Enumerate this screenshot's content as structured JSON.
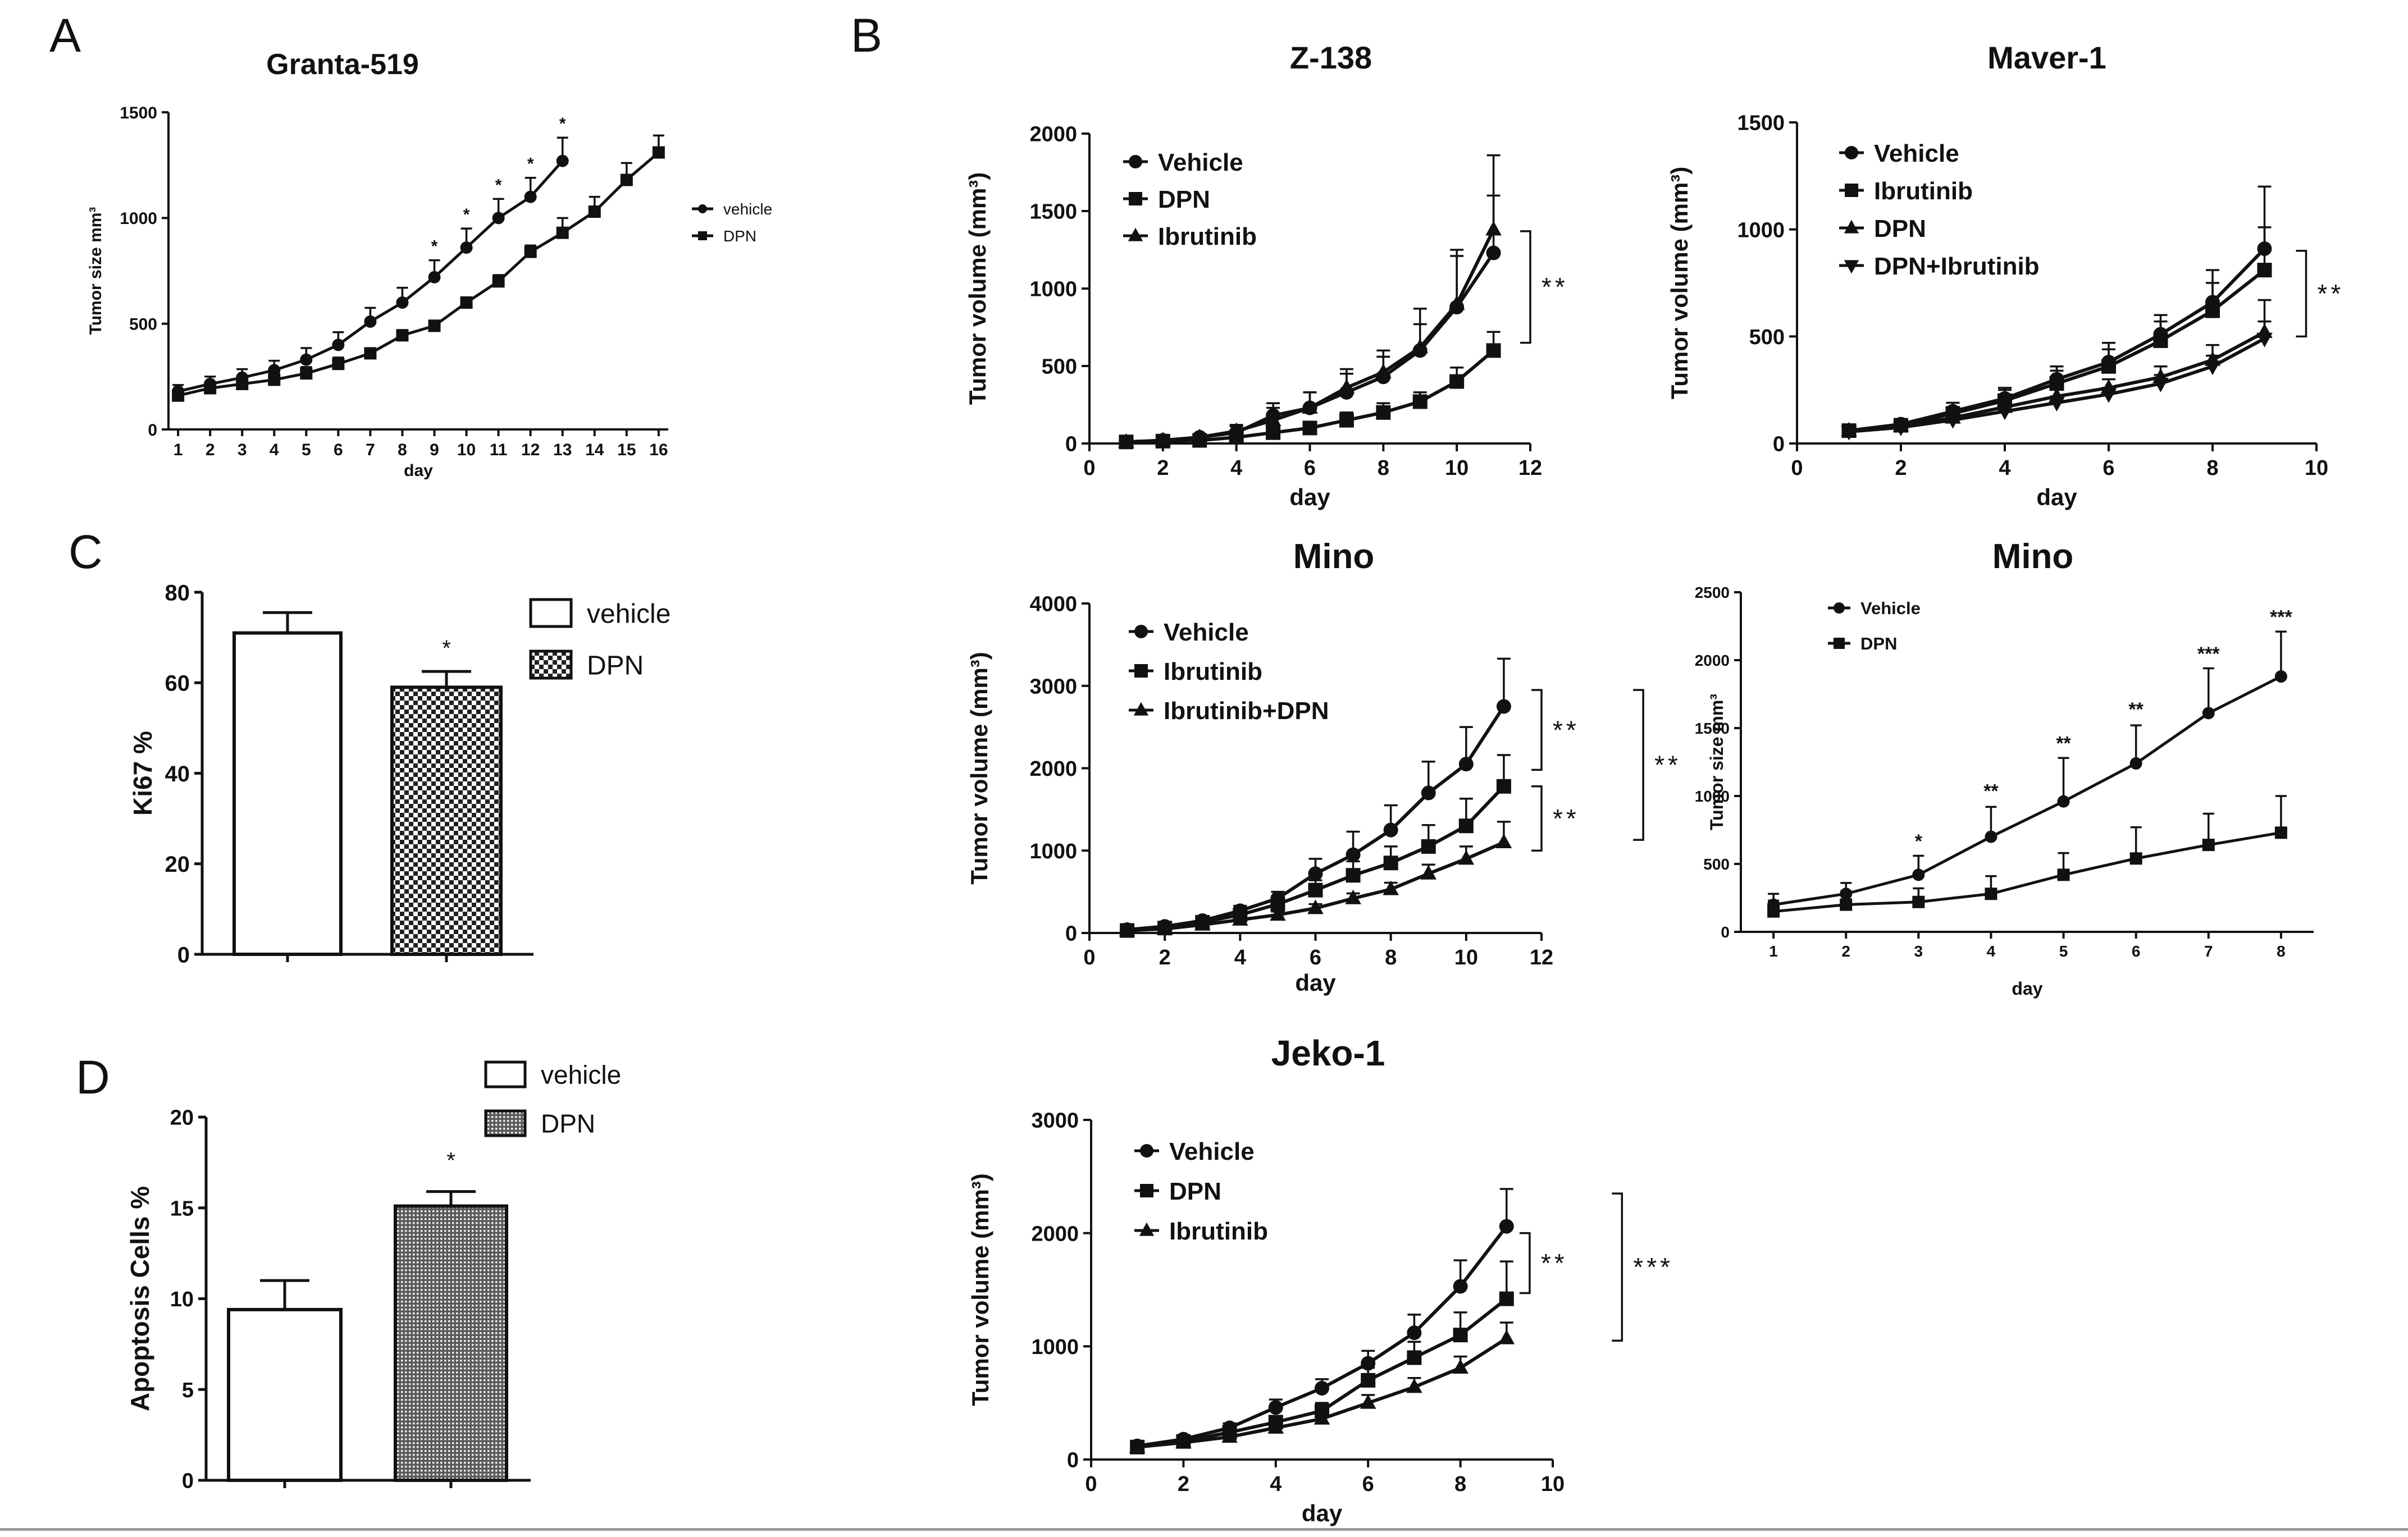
{
  "figure": {
    "panel_labels": [
      "A",
      "B",
      "C",
      "D"
    ],
    "colors": {
      "ink": "#111111",
      "background": "#ffffff",
      "rule": "#9a9a9a"
    }
  },
  "chart_data": [
    {
      "id": "A",
      "type": "line",
      "title": "Granta-519",
      "xlabel": "day",
      "ylabel": "Tumor size mm³",
      "x": [
        1,
        2,
        3,
        4,
        5,
        6,
        7,
        8,
        9,
        10,
        11,
        12,
        13,
        14,
        15,
        16
      ],
      "xlim": [
        0.7,
        16.3
      ],
      "ylim": [
        0,
        1500
      ],
      "xticks": [
        1,
        2,
        3,
        4,
        5,
        6,
        7,
        8,
        9,
        10,
        11,
        12,
        13,
        14,
        15,
        16
      ],
      "yticks": [
        0,
        500,
        1000,
        1500
      ],
      "legend": "right",
      "series": [
        {
          "name": "vehicle",
          "marker": "circle",
          "values": [
            180,
            215,
            245,
            280,
            330,
            400,
            510,
            600,
            720,
            860,
            1000,
            1100,
            1270,
            null,
            null,
            null
          ],
          "errors": [
            30,
            35,
            40,
            45,
            55,
            60,
            65,
            70,
            80,
            90,
            90,
            90,
            110,
            null,
            null,
            null
          ]
        },
        {
          "name": "DPN",
          "marker": "square",
          "values": [
            160,
            195,
            215,
            235,
            265,
            310,
            360,
            445,
            490,
            600,
            700,
            840,
            930,
            1030,
            1180,
            1310
          ],
          "errors": [
            25,
            25,
            30,
            30,
            30,
            30,
            20,
            25,
            25,
            25,
            30,
            30,
            70,
            70,
            80,
            80
          ]
        }
      ],
      "annotations": [
        {
          "text": "*",
          "x": 9,
          "y": 840
        },
        {
          "text": "*",
          "x": 10,
          "y": 990
        },
        {
          "text": "*",
          "x": 11,
          "y": 1130
        },
        {
          "text": "*",
          "x": 12,
          "y": 1230
        },
        {
          "text": "*",
          "x": 13,
          "y": 1420
        }
      ],
      "brackets": []
    },
    {
      "id": "B1",
      "type": "line",
      "title": "Z-138",
      "xlabel": "day",
      "ylabel": "Tumor volume (mm³)",
      "x": [
        1,
        2,
        3,
        4,
        5,
        6,
        7,
        8,
        9,
        10,
        11
      ],
      "xlim": [
        0,
        12
      ],
      "ylim": [
        0,
        2000
      ],
      "xticks": [
        0,
        2,
        4,
        6,
        8,
        10,
        12
      ],
      "yticks": [
        0,
        500,
        1000,
        1500,
        2000
      ],
      "legend": "top-left",
      "series": [
        {
          "name": "Vehicle",
          "marker": "circle",
          "values": [
            10,
            20,
            40,
            70,
            180,
            230,
            330,
            430,
            600,
            880,
            1230
          ],
          "errors": [
            10,
            10,
            20,
            40,
            80,
            100,
            120,
            130,
            170,
            330,
            370
          ]
        },
        {
          "name": "DPN",
          "marker": "square",
          "values": [
            10,
            15,
            20,
            40,
            70,
            100,
            150,
            200,
            270,
            400,
            600
          ],
          "errors": [
            10,
            10,
            10,
            20,
            30,
            40,
            50,
            60,
            60,
            90,
            120
          ]
        },
        {
          "name": "Ibrutinib",
          "marker": "triangle",
          "values": [
            10,
            20,
            40,
            80,
            150,
            230,
            360,
            460,
            620,
            900,
            1380
          ],
          "errors": [
            10,
            10,
            20,
            40,
            80,
            100,
            120,
            140,
            250,
            350,
            480
          ]
        }
      ],
      "annotations": [],
      "brackets": [
        {
          "x": 12,
          "y1": 1370,
          "y2": 650,
          "label": "**"
        }
      ]
    },
    {
      "id": "B2",
      "type": "line",
      "title": "Maver-1",
      "xlabel": "day",
      "ylabel": "Tumor volume (mm³)",
      "x": [
        1,
        2,
        3,
        4,
        5,
        6,
        7,
        8,
        9
      ],
      "xlim": [
        0,
        10
      ],
      "ylim": [
        0,
        1500
      ],
      "xticks": [
        0,
        2,
        4,
        6,
        8,
        10
      ],
      "yticks": [
        0,
        500,
        1000,
        1500
      ],
      "legend": "top-left",
      "series": [
        {
          "name": "Vehicle",
          "marker": "circle",
          "values": [
            60,
            90,
            150,
            210,
            300,
            380,
            510,
            660,
            910
          ],
          "errors": [
            10,
            20,
            40,
            50,
            60,
            90,
            90,
            150,
            290
          ]
        },
        {
          "name": "Ibrutinib",
          "marker": "square",
          "values": [
            60,
            85,
            140,
            200,
            280,
            360,
            480,
            620,
            810
          ],
          "errors": [
            10,
            20,
            30,
            50,
            60,
            80,
            90,
            130,
            200
          ]
        },
        {
          "name": "DPN",
          "marker": "triangle",
          "values": [
            60,
            80,
            120,
            170,
            220,
            260,
            310,
            390,
            520
          ],
          "errors": [
            10,
            15,
            20,
            30,
            40,
            40,
            50,
            70,
            150
          ]
        },
        {
          "name": "DPN+Ibrutinib",
          "marker": "down-triangle",
          "values": [
            55,
            75,
            110,
            150,
            190,
            230,
            280,
            360,
            490
          ],
          "errors": [
            10,
            15,
            20,
            25,
            30,
            30,
            40,
            50,
            80
          ]
        }
      ],
      "annotations": [],
      "brackets": [
        {
          "x": 9.8,
          "y1": 900,
          "y2": 500,
          "label": "**"
        }
      ]
    },
    {
      "id": "B3",
      "type": "line",
      "title": "Mino",
      "xlabel": "day",
      "ylabel": "Tumor volume (mm³)",
      "x": [
        1,
        2,
        3,
        4,
        5,
        6,
        7,
        8,
        9,
        10,
        11
      ],
      "xlim": [
        0,
        12
      ],
      "ylim": [
        0,
        4000
      ],
      "xticks": [
        0,
        2,
        4,
        6,
        8,
        10,
        12
      ],
      "yticks": [
        0,
        1000,
        2000,
        3000,
        4000
      ],
      "legend": "top-left",
      "series": [
        {
          "name": "Vehicle",
          "marker": "circle",
          "values": [
            40,
            80,
            150,
            270,
            420,
            720,
            950,
            1250,
            1700,
            2050,
            2750
          ],
          "errors": [
            20,
            30,
            40,
            60,
            80,
            180,
            280,
            300,
            380,
            450,
            580
          ]
        },
        {
          "name": "Ibrutinib",
          "marker": "square",
          "values": [
            30,
            60,
            130,
            220,
            350,
            520,
            700,
            850,
            1050,
            1300,
            1780
          ],
          "errors": [
            20,
            30,
            30,
            50,
            70,
            120,
            170,
            200,
            260,
            330,
            380
          ]
        },
        {
          "name": "Ibrutinib+DPN",
          "marker": "triangle",
          "values": [
            30,
            50,
            100,
            160,
            220,
            300,
            420,
            530,
            720,
            900,
            1100
          ],
          "errors": [
            10,
            20,
            20,
            30,
            40,
            50,
            60,
            80,
            110,
            150,
            250
          ]
        }
      ],
      "annotations": [],
      "brackets": [
        {
          "x": 12,
          "y1": 2950,
          "y2": 1980,
          "label": "**"
        },
        {
          "x": 12,
          "y1": 1780,
          "y2": 1000,
          "label": "**"
        },
        {
          "x": 14.7,
          "y1": 2950,
          "y2": 1130,
          "label": "**"
        }
      ]
    },
    {
      "id": "B4",
      "type": "line",
      "title": "Mino",
      "xlabel": "day",
      "ylabel": "Tumor size mm³",
      "x": [
        1,
        2,
        3,
        4,
        5,
        6,
        7,
        8
      ],
      "xlim": [
        0.55,
        8.45
      ],
      "ylim": [
        0,
        2500
      ],
      "xticks": [
        1,
        2,
        3,
        4,
        5,
        6,
        7,
        8
      ],
      "yticks": [
        0,
        500,
        1000,
        1500,
        2000,
        2500
      ],
      "legend": "top-left",
      "series": [
        {
          "name": "Vehicle",
          "marker": "circle",
          "values": [
            200,
            280,
            420,
            700,
            960,
            1240,
            1610,
            1880
          ],
          "errors": [
            80,
            80,
            140,
            220,
            320,
            280,
            330,
            330
          ]
        },
        {
          "name": "DPN",
          "marker": "square",
          "values": [
            150,
            200,
            220,
            280,
            420,
            540,
            640,
            730
          ],
          "errors": [
            80,
            100,
            100,
            130,
            160,
            230,
            230,
            270
          ]
        }
      ],
      "annotations": [
        {
          "text": "*",
          "x": 3,
          "y": 620
        },
        {
          "text": "**",
          "x": 4,
          "y": 990
        },
        {
          "text": "**",
          "x": 5,
          "y": 1340
        },
        {
          "text": "**",
          "x": 6,
          "y": 1590
        },
        {
          "text": "***",
          "x": 7,
          "y": 2000
        },
        {
          "text": "***",
          "x": 8,
          "y": 2270
        }
      ],
      "brackets": []
    },
    {
      "id": "B5",
      "type": "line",
      "title": "Jeko-1",
      "xlabel": "day",
      "ylabel": "Tumor volume (mm³)",
      "x": [
        1,
        2,
        3,
        4,
        5,
        6,
        7,
        8,
        9
      ],
      "xlim": [
        0,
        10
      ],
      "ylim": [
        0,
        3000
      ],
      "xticks": [
        0,
        2,
        4,
        6,
        8,
        10
      ],
      "yticks": [
        0,
        1000,
        2000,
        3000
      ],
      "legend": "top-left",
      "series": [
        {
          "name": "Vehicle",
          "marker": "circle",
          "values": [
            120,
            180,
            280,
            460,
            630,
            850,
            1120,
            1530,
            2060
          ],
          "errors": [
            20,
            30,
            40,
            70,
            80,
            110,
            160,
            230,
            330
          ]
        },
        {
          "name": "DPN",
          "marker": "square",
          "values": [
            110,
            160,
            240,
            330,
            430,
            700,
            900,
            1100,
            1420
          ],
          "errors": [
            20,
            30,
            40,
            50,
            70,
            110,
            140,
            200,
            330
          ]
        },
        {
          "name": "Ibrutinib",
          "marker": "triangle",
          "values": [
            110,
            150,
            200,
            280,
            360,
            500,
            640,
            810,
            1070
          ],
          "errors": [
            20,
            20,
            30,
            40,
            50,
            70,
            80,
            100,
            140
          ]
        }
      ],
      "annotations": [],
      "brackets": [
        {
          "x": 9.5,
          "y1": 2000,
          "y2": 1470,
          "label": "**"
        },
        {
          "x": 11.5,
          "y1": 2350,
          "y2": 1050,
          "label": "***"
        }
      ]
    },
    {
      "id": "C",
      "type": "bar",
      "title": "",
      "xlabel": "",
      "ylabel": "Ki67 %",
      "categories": [
        "vehicle",
        "DPN"
      ],
      "fills": [
        "open",
        "checker"
      ],
      "values": [
        71,
        59
      ],
      "errors": [
        4.5,
        3.5
      ],
      "ylim": [
        0,
        80
      ],
      "yticks": [
        0,
        20,
        40,
        60,
        80
      ],
      "legend": "top-right",
      "annotations": [
        {
          "text": "*",
          "category": 1,
          "y": 66
        }
      ]
    },
    {
      "id": "D",
      "type": "bar",
      "title": "",
      "xlabel": "",
      "ylabel": "Apoptosis Cells %",
      "categories": [
        "vehicle",
        "DPN"
      ],
      "fills": [
        "open",
        "dots"
      ],
      "values": [
        9.4,
        15.1
      ],
      "errors": [
        1.6,
        0.8
      ],
      "ylim": [
        0,
        20
      ],
      "yticks": [
        0,
        5,
        10,
        15,
        20
      ],
      "legend": "top",
      "annotations": [
        {
          "text": "*",
          "category": 1,
          "y": 17.2
        }
      ]
    }
  ]
}
